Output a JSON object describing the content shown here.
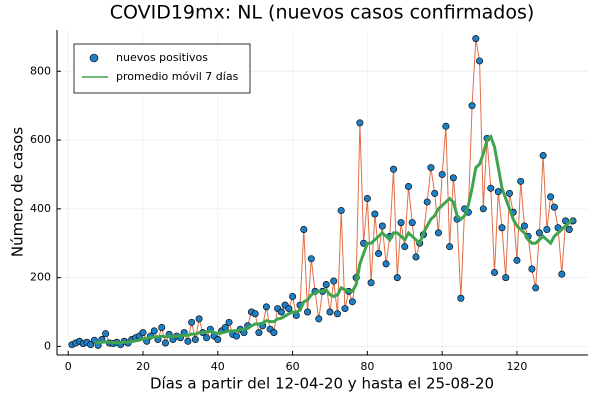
{
  "chart_data": {
    "type": "scatter",
    "title": "COVID19mx: NL (nuevos casos confirmados)",
    "xlabel": "Días a partir del 12-04-20 y hasta el 25-08-20",
    "ylabel": "Número de casos",
    "xlim": [
      -3,
      139
    ],
    "ylim": [
      -25,
      920
    ],
    "xticks": [
      0,
      20,
      40,
      60,
      80,
      100,
      120
    ],
    "yticks": [
      0,
      200,
      400,
      600,
      800
    ],
    "grid": true,
    "legend": "top-left",
    "x": [
      1,
      2,
      3,
      4,
      5,
      6,
      7,
      8,
      9,
      10,
      11,
      12,
      13,
      14,
      15,
      16,
      17,
      18,
      19,
      20,
      21,
      22,
      23,
      24,
      25,
      26,
      27,
      28,
      29,
      30,
      31,
      32,
      33,
      34,
      35,
      36,
      37,
      38,
      39,
      40,
      41,
      42,
      43,
      44,
      45,
      46,
      47,
      48,
      49,
      50,
      51,
      52,
      53,
      54,
      55,
      56,
      57,
      58,
      59,
      60,
      61,
      62,
      63,
      64,
      65,
      66,
      67,
      68,
      69,
      70,
      71,
      72,
      73,
      74,
      75,
      76,
      77,
      78,
      79,
      80,
      81,
      82,
      83,
      84,
      85,
      86,
      87,
      88,
      89,
      90,
      91,
      92,
      93,
      94,
      95,
      96,
      97,
      98,
      99,
      100,
      101,
      102,
      103,
      104,
      105,
      106,
      107,
      108,
      109,
      110,
      111,
      112,
      113,
      114,
      115,
      116,
      117,
      118,
      119,
      120,
      121,
      122,
      123,
      124,
      125,
      126,
      127,
      128,
      129,
      130,
      131,
      132,
      133,
      134,
      135
    ],
    "series": [
      {
        "name": "nuevos positivos",
        "type": "scatter",
        "color": "#1f7fc4",
        "line_color": "#e26f46",
        "values": [
          5,
          10,
          15,
          8,
          12,
          5,
          18,
          3,
          20,
          37,
          10,
          8,
          12,
          5,
          15,
          10,
          20,
          25,
          30,
          40,
          15,
          30,
          45,
          20,
          55,
          10,
          35,
          20,
          30,
          25,
          40,
          15,
          70,
          20,
          80,
          40,
          25,
          50,
          30,
          20,
          45,
          55,
          70,
          35,
          30,
          50,
          40,
          60,
          100,
          95,
          40,
          60,
          115,
          50,
          40,
          110,
          100,
          120,
          110,
          145,
          90,
          120,
          340,
          100,
          255,
          160,
          80,
          160,
          180,
          100,
          190,
          95,
          395,
          110,
          160,
          130,
          200,
          650,
          300,
          430,
          185,
          385,
          270,
          350,
          240,
          320,
          515,
          200,
          360,
          290,
          465,
          360,
          260,
          300,
          325,
          420,
          520,
          445,
          330,
          500,
          640,
          290,
          490,
          370,
          140,
          400,
          390,
          700,
          895,
          830,
          400,
          605,
          460,
          215,
          450,
          345,
          200,
          445,
          390,
          250,
          480,
          350,
          320,
          225,
          170,
          330,
          555,
          340,
          435,
          405,
          345,
          210,
          365,
          340,
          365
        ]
      },
      {
        "name": "promedio móvil 7 días",
        "type": "line",
        "color": "#3ea44e",
        "values": [
          null,
          null,
          null,
          null,
          null,
          null,
          10,
          11,
          12,
          13,
          12,
          11,
          10,
          11,
          12,
          13,
          14,
          16,
          18,
          22,
          24,
          26,
          28,
          28,
          30,
          28,
          30,
          28,
          30,
          30,
          32,
          32,
          36,
          35,
          40,
          40,
          42,
          44,
          40,
          38,
          40,
          42,
          45,
          45,
          46,
          48,
          50,
          52,
          60,
          65,
          65,
          68,
          75,
          72,
          72,
          80,
          82,
          88,
          95,
          100,
          100,
          105,
          130,
          135,
          150,
          155,
          160,
          160,
          165,
          150,
          145,
          150,
          170,
          165,
          160,
          160,
          180,
          240,
          270,
          300,
          300,
          310,
          320,
          330,
          320,
          310,
          330,
          330,
          320,
          310,
          330,
          320,
          310,
          300,
          330,
          350,
          370,
          380,
          400,
          410,
          420,
          430,
          420,
          380,
          370,
          380,
          410,
          460,
          520,
          530,
          560,
          600,
          610,
          580,
          520,
          460,
          430,
          400,
          370,
          350,
          340,
          330,
          310,
          300,
          300,
          310,
          320,
          310,
          300,
          320,
          330,
          340,
          350,
          360,
          370
        ]
      }
    ]
  }
}
